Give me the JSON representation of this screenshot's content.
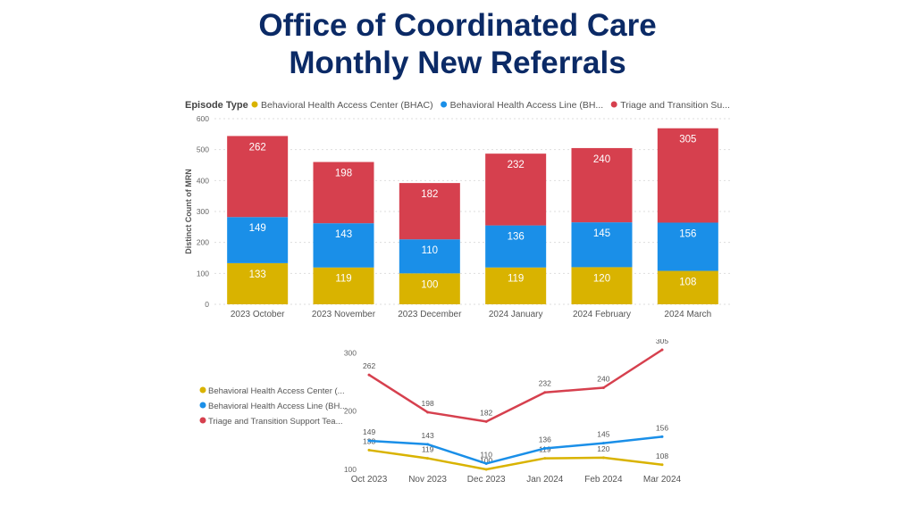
{
  "title": {
    "line1": "Office of Coordinated Care",
    "line2": "Monthly New Referrals"
  },
  "colors": {
    "bhac": "#d9b300",
    "bhal": "#1a8fe8",
    "tts": "#d6404e",
    "title": "#0b2a66",
    "axis_text": "#666666",
    "grid": "#dddddd"
  },
  "chart_data": [
    {
      "type": "bar",
      "stacked": true,
      "legend_title": "Episode Type",
      "legend_labels": [
        "Behavioral Health Access Center (BHAC)",
        "Behavioral Health Access Line (BH...",
        "Triage and Transition Su..."
      ],
      "ylabel": "Distinct Count of MRN",
      "xlabel": "",
      "ylim": [
        0,
        600
      ],
      "yticks": [
        0,
        100,
        200,
        300,
        400,
        500,
        600
      ],
      "grid": true,
      "categories": [
        "2023 October",
        "2023 November",
        "2023 December",
        "2024 January",
        "2024 February",
        "2024 March"
      ],
      "series": [
        {
          "name": "Behavioral Health Access Center (BHAC)",
          "color_key": "bhac",
          "values": [
            133,
            119,
            100,
            119,
            120,
            108
          ]
        },
        {
          "name": "Behavioral Health Access Line (BHAL)",
          "color_key": "bhal",
          "values": [
            149,
            143,
            110,
            136,
            145,
            156
          ]
        },
        {
          "name": "Triage and Transition Support Team",
          "color_key": "tts",
          "values": [
            262,
            198,
            182,
            232,
            240,
            305
          ]
        }
      ]
    },
    {
      "type": "line",
      "legend_labels": [
        "Behavioral Health Access Center (...",
        "Behavioral Health Access Line (BH...",
        "Triage and Transition Support Tea..."
      ],
      "ylim": [
        100,
        305
      ],
      "yticks": [
        100,
        200,
        300
      ],
      "grid": false,
      "categories": [
        "Oct 2023",
        "Nov 2023",
        "Dec 2023",
        "Jan 2024",
        "Feb 2024",
        "Mar 2024"
      ],
      "series": [
        {
          "name": "Behavioral Health Access Center",
          "color_key": "bhac",
          "values": [
            133,
            119,
            100,
            119,
            120,
            108
          ]
        },
        {
          "name": "Behavioral Health Access Line",
          "color_key": "bhal",
          "values": [
            149,
            143,
            110,
            136,
            145,
            156
          ]
        },
        {
          "name": "Triage and Transition Support Team",
          "color_key": "tts",
          "values": [
            262,
            198,
            182,
            232,
            240,
            305
          ]
        }
      ]
    }
  ]
}
